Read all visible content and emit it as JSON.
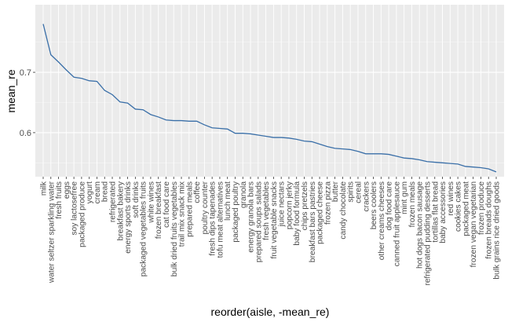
{
  "chart_data": {
    "type": "line",
    "xlabel": "reorder(aisle, -mean_re)",
    "ylabel": "mean_re",
    "ylim": [
      0.527,
      0.812
    ],
    "yticks": [
      0.6,
      0.7
    ],
    "grid": true,
    "line_color": "#3a6fa8",
    "panel_color": "#ebebeb",
    "categories": [
      "milk",
      "water seltzer sparkling water",
      "fresh fruits",
      "eggs",
      "soy lactosefree",
      "packaged produce",
      "yogurt",
      "cream",
      "bread",
      "refrigerated",
      "breakfast bakery",
      "energy sports drinks",
      "soft drinks",
      "packaged vegetables fruits",
      "white wines",
      "frozen breakfast",
      "cat food care",
      "bulk dried fruits vegetables",
      "trail mix snack mix",
      "prepared meals",
      "coffee",
      "poultry counter",
      "fresh dips tapenades",
      "tofu meat alternatives",
      "lunch meat",
      "packaged poultry",
      "granola",
      "energy granola bars",
      "prepared soups salads",
      "fresh vegetables",
      "fruit vegetable snacks",
      "juice nectars",
      "popcorn jerky",
      "baby food formula",
      "chips pretzels",
      "breakfast bars pastries",
      "packaged cheese",
      "frozen pizza",
      "butter",
      "candy chocolate",
      "spirits",
      "cereal",
      "crackers",
      "beers coolers",
      "other creams cheeses",
      "dog food care",
      "canned fruit applesauce",
      "mint gum",
      "frozen meals",
      "hot dogs bacon sausage",
      "refrigerated pudding desserts",
      "tortillas flat bread",
      "baby accessories",
      "red wines",
      "cookies cakes",
      "packaged meat",
      "frozen vegan vegetarian",
      "frozen produce",
      "frozen breads doughs",
      "bulk grains rice dried goods"
    ],
    "values": [
      0.78,
      0.729,
      0.717,
      0.704,
      0.692,
      0.69,
      0.686,
      0.685,
      0.67,
      0.663,
      0.651,
      0.649,
      0.639,
      0.638,
      0.63,
      0.626,
      0.621,
      0.62,
      0.62,
      0.619,
      0.619,
      0.613,
      0.608,
      0.607,
      0.606,
      0.599,
      0.599,
      0.598,
      0.596,
      0.594,
      0.592,
      0.592,
      0.591,
      0.589,
      0.586,
      0.585,
      0.581,
      0.577,
      0.574,
      0.573,
      0.572,
      0.569,
      0.565,
      0.565,
      0.565,
      0.564,
      0.561,
      0.558,
      0.557,
      0.555,
      0.552,
      0.551,
      0.55,
      0.549,
      0.548,
      0.544,
      0.543,
      0.542,
      0.54,
      0.535
    ]
  }
}
